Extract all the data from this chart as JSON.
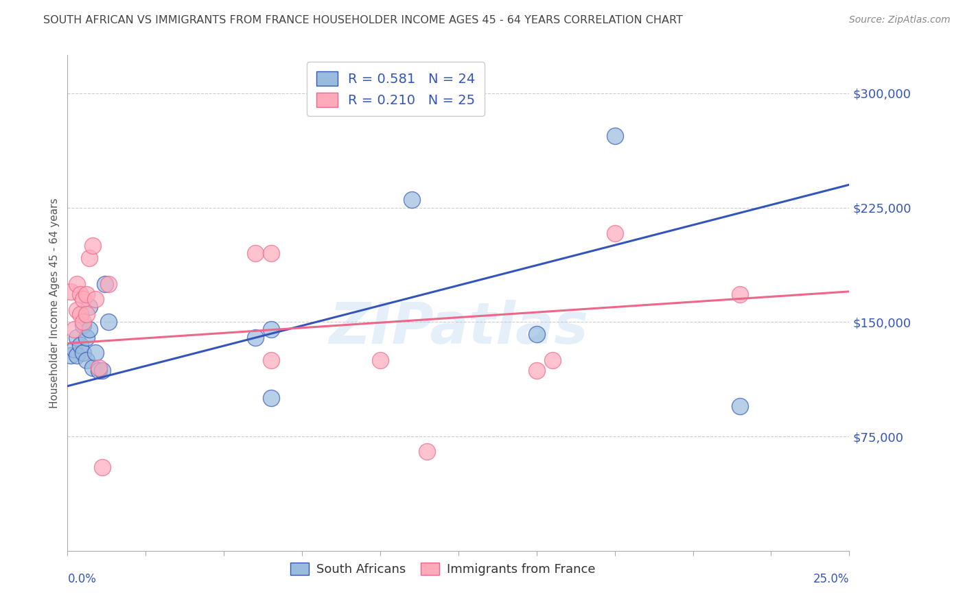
{
  "title": "SOUTH AFRICAN VS IMMIGRANTS FROM FRANCE HOUSEHOLDER INCOME AGES 45 - 64 YEARS CORRELATION CHART",
  "source": "Source: ZipAtlas.com",
  "ylabel": "Householder Income Ages 45 - 64 years",
  "xlim": [
    0.0,
    0.25
  ],
  "ylim": [
    0,
    325000
  ],
  "yticks": [
    75000,
    150000,
    225000,
    300000
  ],
  "ytick_labels": [
    "$75,000",
    "$150,000",
    "$225,000",
    "$300,000"
  ],
  "blue_scatter_color": "#99BBDD",
  "pink_scatter_color": "#FFAABB",
  "blue_line_color": "#3355BB",
  "pink_line_color": "#EE6688",
  "blue_R": "0.581",
  "blue_N": "24",
  "pink_R": "0.210",
  "pink_N": "25",
  "legend_label_blue": "South Africans",
  "legend_label_pink": "Immigrants from France",
  "watermark": "ZIPatlas",
  "blue_scatter_x": [
    0.001,
    0.002,
    0.003,
    0.003,
    0.004,
    0.005,
    0.005,
    0.006,
    0.006,
    0.007,
    0.007,
    0.008,
    0.009,
    0.01,
    0.011,
    0.012,
    0.013,
    0.06,
    0.065,
    0.065,
    0.11,
    0.15,
    0.175,
    0.215
  ],
  "blue_scatter_y": [
    128000,
    132000,
    128000,
    140000,
    135000,
    130000,
    148000,
    140000,
    125000,
    145000,
    160000,
    120000,
    130000,
    118000,
    118000,
    175000,
    150000,
    140000,
    100000,
    145000,
    230000,
    142000,
    272000,
    95000
  ],
  "pink_scatter_x": [
    0.001,
    0.002,
    0.003,
    0.003,
    0.004,
    0.004,
    0.005,
    0.005,
    0.006,
    0.006,
    0.007,
    0.008,
    0.009,
    0.01,
    0.011,
    0.013,
    0.06,
    0.065,
    0.065,
    0.1,
    0.115,
    0.15,
    0.155,
    0.175,
    0.215
  ],
  "pink_scatter_y": [
    170000,
    145000,
    175000,
    158000,
    168000,
    155000,
    165000,
    150000,
    168000,
    155000,
    192000,
    200000,
    165000,
    120000,
    55000,
    175000,
    195000,
    195000,
    125000,
    125000,
    65000,
    118000,
    125000,
    208000,
    168000
  ],
  "blue_line_x": [
    0.0,
    0.25
  ],
  "blue_line_y": [
    108000,
    240000
  ],
  "pink_line_x": [
    0.0,
    0.25
  ],
  "pink_line_y": [
    136000,
    170000
  ],
  "axis_color": "#AAAAAA",
  "grid_color": "#CCCCCC",
  "tick_label_color": "#3355BB",
  "title_color": "#444444",
  "ylabel_color": "#555555",
  "legend_text_color": "#333333",
  "bottom_legend_text_color": "#333333"
}
